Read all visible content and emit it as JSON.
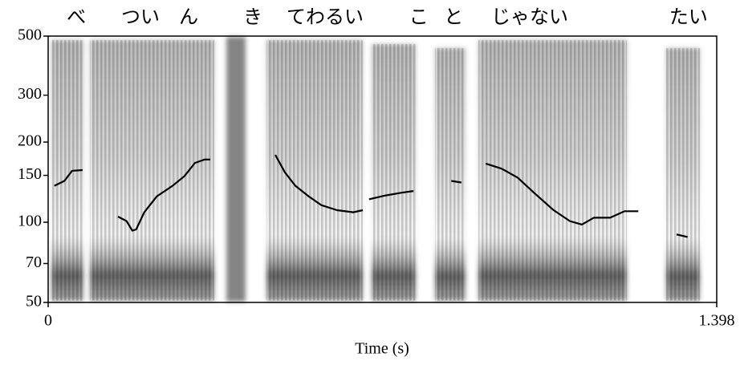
{
  "chart_data": {
    "type": "line",
    "annotations": [
      {
        "text": "べ",
        "x": 0.059
      },
      {
        "text": "つい",
        "x": 0.193
      },
      {
        "text": "ん",
        "x": 0.294
      },
      {
        "text": "き",
        "x": 0.428
      },
      {
        "text": "てわるい",
        "x": 0.579
      },
      {
        "text": "こ",
        "x": 0.775
      },
      {
        "text": "と",
        "x": 0.848
      },
      {
        "text": "じゃない",
        "x": 1.007
      },
      {
        "text": "たい",
        "x": 1.339
      }
    ],
    "x_label": "Time (s)",
    "xlim": [
      0,
      1.398
    ],
    "xticks": [
      0,
      1.398
    ],
    "ylim": [
      50,
      500
    ],
    "yticks": [
      50,
      70,
      100,
      150,
      200,
      300,
      500
    ],
    "log_y": true,
    "series": [
      {
        "color": "#000000",
        "x": [
          0.013,
          0.034,
          0.05,
          0.072,
          0.11,
          0.146,
          0.164,
          0.176,
          0.184,
          0.201,
          0.227,
          0.26,
          0.285,
          0.307,
          0.327,
          0.339,
          0.41,
          0.475,
          0.495,
          0.517,
          0.545,
          0.571,
          0.604,
          0.638,
          0.658,
          0.665,
          0.671,
          0.705,
          0.738,
          0.764,
          0.8,
          0.843,
          0.864,
          0.89,
          0.915,
          0.948,
          0.982,
          1.016,
          1.057,
          1.091,
          1.116,
          1.141,
          1.175,
          1.205,
          1.234,
          1.27,
          1.314,
          1.337
        ],
        "values": [
          137,
          143,
          156,
          157,
          null,
          105,
          101,
          93,
          94,
          109,
          125,
          137,
          149,
          167,
          172,
          172,
          null,
          179,
          154,
          137,
          125,
          116,
          111,
          109,
          111,
          null,
          122,
          126,
          129,
          131,
          null,
          143,
          141,
          null,
          166,
          159,
          147,
          129,
          111,
          101,
          98,
          104,
          104,
          110,
          110,
          null,
          90,
          88
        ]
      }
    ]
  }
}
